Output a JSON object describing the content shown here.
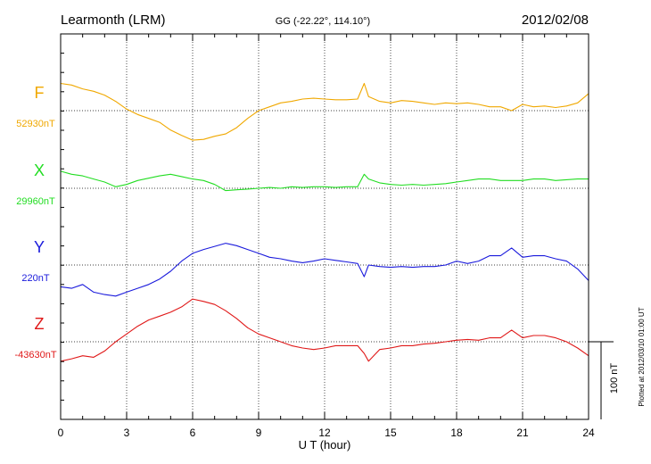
{
  "header": {
    "station": "Learmonth (LRM)",
    "coords": "GG (-22.22°, 114.10°)",
    "date": "2012/02/08"
  },
  "side_note": "Plotted at 2012/03/10 01:00 UT",
  "scale_bar_label": "100 nT",
  "chart_data": {
    "type": "line",
    "xlabel": "U T (hour)",
    "xlim": [
      0,
      24
    ],
    "x_ticks": [
      "0",
      "3",
      "6",
      "9",
      "12",
      "15",
      "18",
      "21",
      "24"
    ],
    "y_unit": "nT",
    "grid": true,
    "series": [
      {
        "name": "F",
        "baseline_label": "52930nT",
        "color": "#f0a800",
        "x": [
          0,
          0.5,
          1,
          1.5,
          2,
          2.5,
          3,
          3.5,
          4,
          4.5,
          5,
          5.5,
          6,
          6.5,
          7,
          7.5,
          8,
          8.5,
          9,
          9.5,
          10,
          10.5,
          11,
          11.5,
          12,
          12.5,
          13,
          13.5,
          13.8,
          14,
          14.5,
          15,
          15.5,
          16,
          16.5,
          17,
          17.5,
          18,
          18.5,
          19,
          19.5,
          20,
          20.5,
          21,
          21.5,
          22,
          22.5,
          23,
          23.5,
          24
        ],
        "y": [
          35,
          33,
          28,
          25,
          20,
          12,
          2,
          -5,
          -10,
          -15,
          -25,
          -32,
          -38,
          -37,
          -33,
          -30,
          -22,
          -10,
          0,
          5,
          10,
          12,
          15,
          16,
          15,
          14,
          14,
          15,
          35,
          18,
          12,
          10,
          13,
          12,
          10,
          8,
          10,
          9,
          10,
          8,
          5,
          5,
          0,
          8,
          5,
          6,
          4,
          6,
          10,
          22
        ]
      },
      {
        "name": "X",
        "baseline_label": "29960nT",
        "color": "#22dd22",
        "x": [
          0,
          0.5,
          1,
          1.5,
          2,
          2.5,
          3,
          3.5,
          4,
          4.5,
          5,
          5.5,
          6,
          6.5,
          7,
          7.5,
          8,
          8.5,
          9,
          9.5,
          10,
          10.5,
          11,
          11.5,
          12,
          12.5,
          13,
          13.5,
          13.8,
          14,
          14.5,
          15,
          15.5,
          16,
          16.5,
          17,
          17.5,
          18,
          18.5,
          19,
          19.5,
          20,
          20.5,
          21,
          21.5,
          22,
          22.5,
          23,
          23.5,
          24
        ],
        "y": [
          22,
          18,
          16,
          12,
          8,
          2,
          5,
          10,
          13,
          16,
          18,
          15,
          12,
          10,
          5,
          -3,
          -2,
          -1,
          0,
          1,
          0,
          2,
          1,
          2,
          2,
          1,
          2,
          2,
          18,
          12,
          7,
          5,
          4,
          5,
          4,
          5,
          6,
          8,
          10,
          12,
          12,
          10,
          10,
          10,
          12,
          12,
          10,
          11,
          12,
          12
        ]
      },
      {
        "name": "Y",
        "baseline_label": "220nT",
        "color": "#1a1adc",
        "x": [
          0,
          0.5,
          1,
          1.5,
          2,
          2.5,
          3,
          3.5,
          4,
          4.5,
          5,
          5.5,
          6,
          6.5,
          7,
          7.5,
          8,
          8.5,
          9,
          9.5,
          10,
          10.5,
          11,
          11.5,
          12,
          12.5,
          13,
          13.5,
          13.8,
          14,
          14.5,
          15,
          15.5,
          16,
          16.5,
          17,
          17.5,
          18,
          18.5,
          19,
          19.5,
          20,
          20.5,
          21,
          21.5,
          22,
          22.5,
          23,
          23.5,
          24
        ],
        "y": [
          -28,
          -30,
          -25,
          -35,
          -38,
          -40,
          -35,
          -30,
          -25,
          -18,
          -8,
          5,
          15,
          20,
          24,
          28,
          25,
          20,
          15,
          10,
          8,
          5,
          3,
          5,
          8,
          6,
          4,
          2,
          -15,
          0,
          -2,
          -3,
          -2,
          -3,
          -2,
          -2,
          0,
          5,
          2,
          5,
          12,
          12,
          22,
          10,
          12,
          12,
          8,
          5,
          -5,
          -20
        ]
      },
      {
        "name": "Z",
        "baseline_label": "-43630nT",
        "color": "#e01818",
        "x": [
          0,
          0.5,
          1,
          1.5,
          2,
          2.5,
          3,
          3.5,
          4,
          4.5,
          5,
          5.5,
          6,
          6.5,
          7,
          7.5,
          8,
          8.5,
          9,
          9.5,
          10,
          10.5,
          11,
          11.5,
          12,
          12.5,
          13,
          13.5,
          13.8,
          14,
          14.5,
          15,
          15.5,
          16,
          16.5,
          17,
          17.5,
          18,
          18.5,
          19,
          19.5,
          20,
          20.5,
          21,
          21.5,
          22,
          22.5,
          23,
          23.5,
          24
        ],
        "y": [
          -25,
          -22,
          -18,
          -20,
          -12,
          0,
          10,
          20,
          28,
          33,
          38,
          45,
          55,
          52,
          48,
          40,
          30,
          18,
          10,
          5,
          0,
          -5,
          -8,
          -10,
          -8,
          -5,
          -5,
          -5,
          -15,
          -25,
          -10,
          -8,
          -5,
          -5,
          -3,
          -2,
          0,
          2,
          3,
          2,
          5,
          5,
          15,
          5,
          8,
          8,
          5,
          0,
          -8,
          -18
        ]
      }
    ]
  }
}
